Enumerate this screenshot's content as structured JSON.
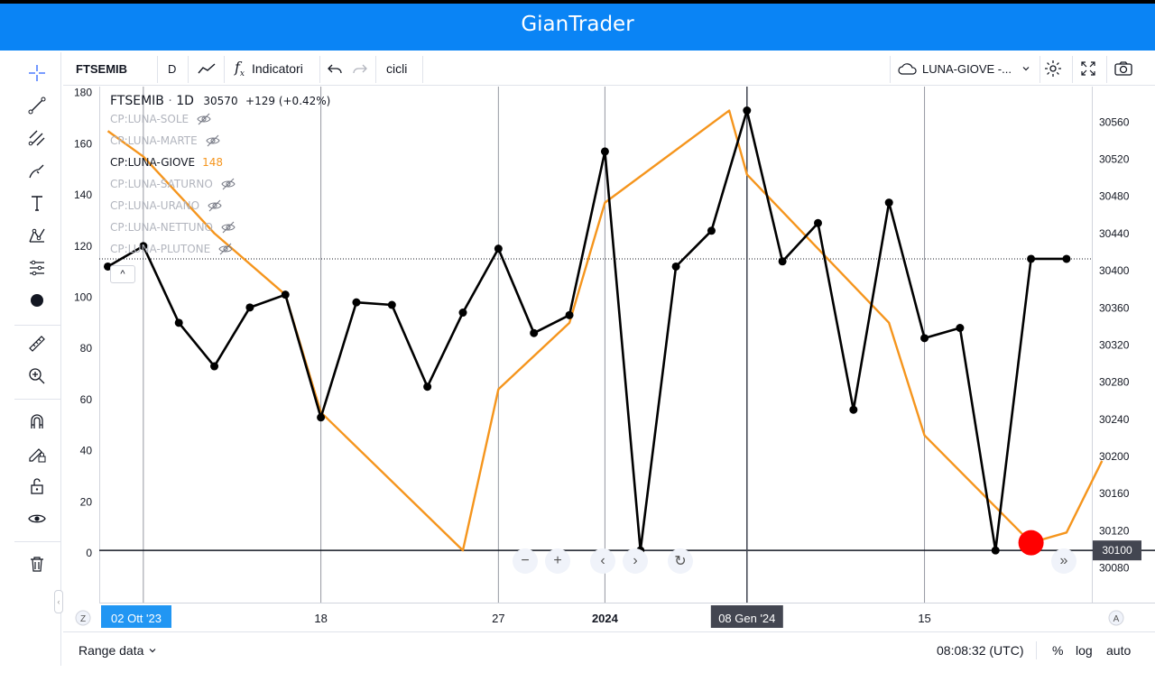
{
  "app": {
    "title": "GianTrader"
  },
  "left_toolbar": {
    "tools": [
      "crosshair-icon",
      "trend-line-icon",
      "fib-retracement-icon",
      "brush-icon",
      "text-icon",
      "pattern-icon",
      "prediction-icon",
      "dot-icon",
      "ruler-icon",
      "zoom-in-icon",
      "magnet-icon",
      "lock-drawing-icon",
      "unlock-icon",
      "eye-icon",
      "trash-icon"
    ]
  },
  "toolbar": {
    "symbol": "FTSEMIB",
    "interval": "D",
    "indicators_label": "Indicatori",
    "cicli_label": "cicli",
    "layout_label": "LUNA-GIOVE -..."
  },
  "legend": {
    "symbol": "FTSEMIB",
    "interval": "1D",
    "price": "30570",
    "change": "+129 (+0.42%)",
    "indicators": [
      {
        "label": "CP:LUNA-SOLE",
        "value": "",
        "hidden": true
      },
      {
        "label": "CP:LUNA-MARTE",
        "value": "",
        "hidden": true
      },
      {
        "label": "CP:LUNA-GIOVE",
        "value": "148",
        "hidden": false
      },
      {
        "label": "CP:LUNA-SATURNO",
        "value": "",
        "hidden": true
      },
      {
        "label": "CP:LUNA-URANO",
        "value": "",
        "hidden": true
      },
      {
        "label": "CP:LUNA-NETTUNO",
        "value": "",
        "hidden": true
      },
      {
        "label": "CP:LUNA-PLUTONE",
        "value": "",
        "hidden": true
      }
    ],
    "collapse_label": "^"
  },
  "chart_data": {
    "type": "line",
    "left_axis": {
      "ticks": [
        "0",
        "20",
        "40",
        "60",
        "80",
        "100",
        "120",
        "140",
        "160",
        "180"
      ],
      "range": [
        0,
        180
      ]
    },
    "right_axis": {
      "ticks": [
        "30080",
        "30100",
        "30120",
        "30160",
        "30200",
        "30240",
        "30280",
        "30320",
        "30360",
        "30400",
        "30440",
        "30480",
        "30520",
        "30560"
      ],
      "range": [
        30100,
        30570
      ]
    },
    "x_ticks": [
      "02 Ott '23",
      "18",
      "27",
      "2024",
      "08 Gen '24",
      "15"
    ],
    "price_label": "30100",
    "series": [
      {
        "color": "#000000",
        "axis": "left",
        "points": [
          112,
          120,
          90,
          73,
          96,
          101,
          53,
          98,
          97,
          65,
          94,
          119,
          86,
          93,
          157,
          1,
          112,
          126,
          173,
          114,
          129,
          56,
          137,
          84,
          88,
          1,
          115,
          115
        ]
      },
      {
        "color": "#f5951d",
        "axis": "left",
        "points": [
          {
            "i": 0,
            "v": 165
          },
          {
            "i": 1,
            "v": 155
          },
          {
            "i": 2,
            "v": 140
          },
          {
            "i": 3,
            "v": 125
          },
          {
            "i": 5,
            "v": 101
          },
          {
            "i": 6,
            "v": 55
          },
          {
            "i": 10,
            "v": 1
          },
          {
            "i": 11,
            "v": 64
          },
          {
            "i": 13,
            "v": 90
          },
          {
            "i": 14,
            "v": 137
          },
          {
            "i": 17.5,
            "v": 173
          },
          {
            "i": 18,
            "v": 148
          },
          {
            "i": 22,
            "v": 90
          },
          {
            "i": 23,
            "v": 46
          },
          {
            "i": 26,
            "v": 4
          },
          {
            "i": 27,
            "v": 8
          },
          {
            "i": 28,
            "v": 36
          }
        ]
      }
    ],
    "horizontal_line_value": 115,
    "zero_line_value": 1,
    "highlight_point": {
      "i": 26,
      "v": 4,
      "color": "#ff0000"
    },
    "vertical_cursor_index": 18
  },
  "nav_buttons": {
    "zoom_out": "−",
    "zoom_in": "+",
    "prev": "‹",
    "next": "›",
    "reset": "↻",
    "end": "»"
  },
  "bottom_bar": {
    "range_label": "Range data",
    "time": "08:08:32 (UTC)",
    "percent_label": "%",
    "log_label": "log",
    "auto_label": "auto"
  }
}
